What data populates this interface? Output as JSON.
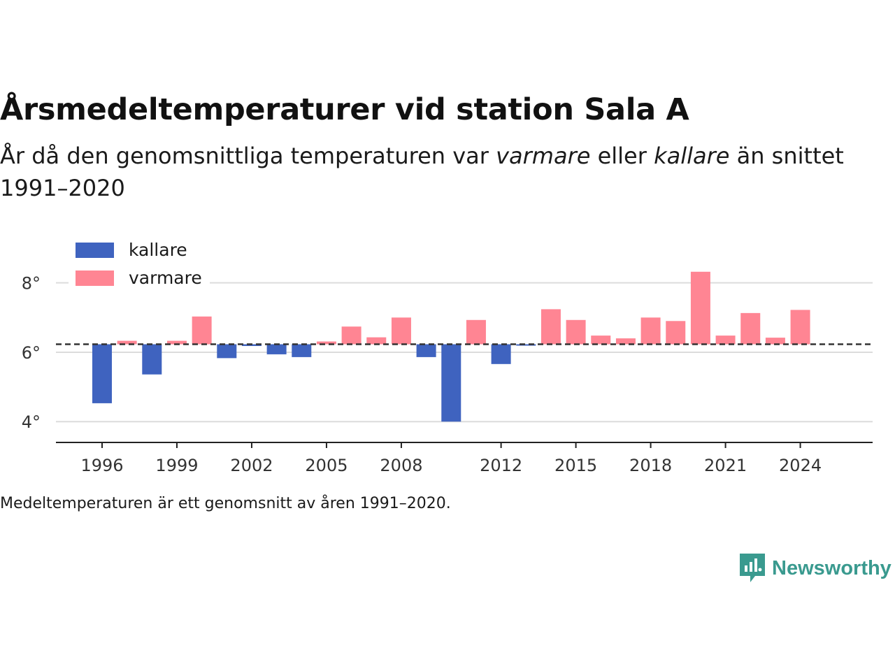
{
  "header": {
    "title": "Årsmedeltemperaturer vid station Sala A",
    "subtitle_part1": "År då den genomsnittliga temperaturen var ",
    "subtitle_em1": "varmare",
    "subtitle_part2": " eller ",
    "subtitle_em2": "kallare",
    "subtitle_part3": " än snittet 1991–2020"
  },
  "footnote": "Medeltemperaturen är ett genomsnitt av åren 1991–2020.",
  "brand": {
    "name": "Newsworthy",
    "icon": "newsworthy-logo-icon",
    "color": "#3a9a8f"
  },
  "chart_data": {
    "type": "bar",
    "baseline": 6.23,
    "baseline_style": "dashed",
    "colors": {
      "kallare": "#3f63bf",
      "varmare": "#ff8593"
    },
    "legend": [
      {
        "key": "kallare",
        "label": "kallare"
      },
      {
        "key": "varmare",
        "label": "varmare"
      }
    ],
    "legend_position": "top-left",
    "x_ticks": [
      "1996",
      "1999",
      "2002",
      "2005",
      "2008",
      "2012",
      "2015",
      "2018",
      "2021",
      "2024"
    ],
    "y_ticks": [
      {
        "value": 4,
        "label": "4°"
      },
      {
        "value": 6,
        "label": "6°"
      },
      {
        "value": 8,
        "label": "8°"
      }
    ],
    "ylim": [
      3.4,
      8.9
    ],
    "xlim": [
      1994.15,
      2026.9
    ],
    "grid": "horizontal",
    "years": [
      1996,
      1997,
      1998,
      1999,
      2000,
      2001,
      2002,
      2003,
      2004,
      2005,
      2006,
      2007,
      2008,
      2009,
      2010,
      2011,
      2012,
      2013,
      2014,
      2015,
      2016,
      2017,
      2018,
      2019,
      2020,
      2021,
      2022,
      2023,
      2024
    ],
    "values": [
      4.53,
      6.33,
      5.36,
      6.33,
      7.03,
      5.83,
      6.18,
      5.94,
      5.86,
      6.31,
      6.74,
      6.43,
      7.0,
      5.86,
      4.0,
      6.93,
      5.66,
      6.19,
      7.24,
      6.93,
      6.48,
      6.4,
      7.0,
      6.9,
      8.32,
      6.48,
      7.13,
      6.42,
      7.22
    ]
  }
}
